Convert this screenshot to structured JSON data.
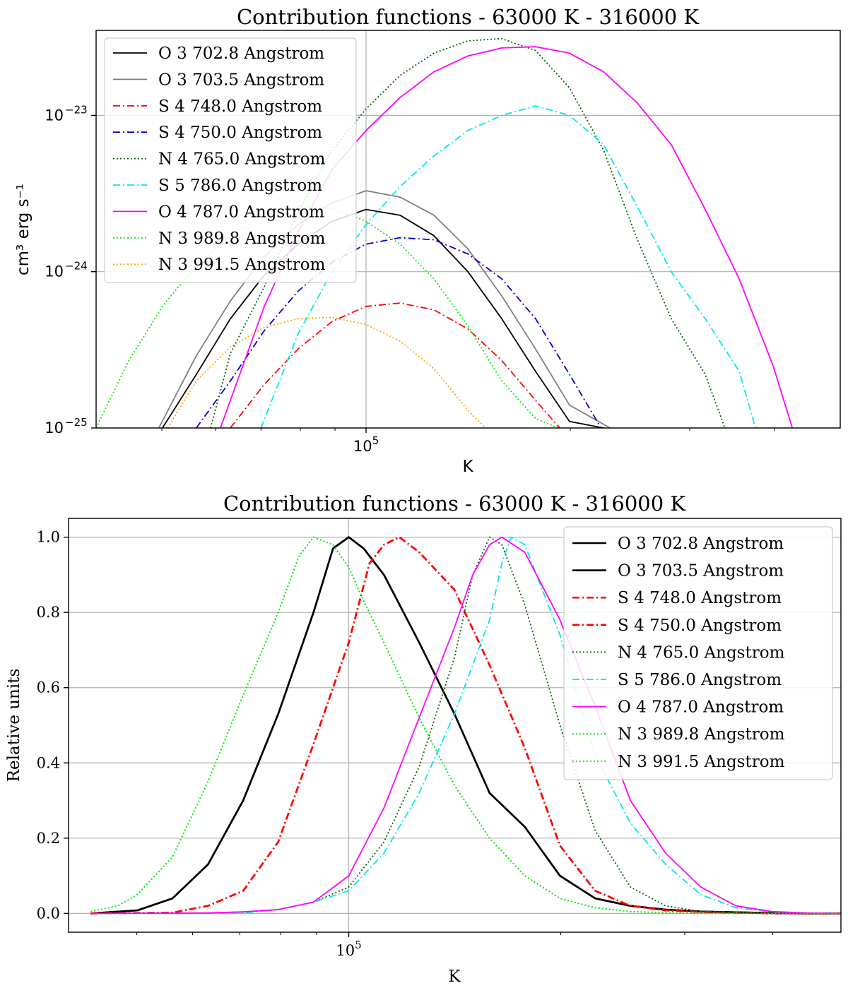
{
  "chart_data": [
    {
      "type": "line",
      "title": "Contribution functions - 63000 K - 316000 K",
      "xlabel": "K",
      "ylabel": "cm³ erg s⁻¹",
      "xscale": "log",
      "yscale": "log",
      "xlim": [
        40000,
        500000
      ],
      "ylim": [
        1e-25,
        3.5e-23
      ],
      "xticks": [
        {
          "value": 100000,
          "label_base": "10",
          "label_exp": "5"
        }
      ],
      "yticks": [
        {
          "value": 1e-25,
          "label_base": "10",
          "label_exp": "−25"
        },
        {
          "value": 1e-24,
          "label_base": "10",
          "label_exp": "−24"
        },
        {
          "value": 1e-23,
          "label_base": "10",
          "label_exp": "−23"
        }
      ],
      "grid": true,
      "legend_position": "upper-left",
      "series": [
        {
          "name": "O 3 702.8 Angstrom",
          "color": "#000000",
          "dash": "solid",
          "x": [
            50100,
            56200,
            63100,
            70800,
            79400,
            89100,
            100000,
            112200,
            125900,
            141300,
            158500,
            177800,
            199500,
            223900
          ],
          "y": [
            1e-25,
            2.2e-25,
            5e-25,
            9.5e-25,
            1.5e-24,
            2.1e-24,
            2.5e-24,
            2.3e-24,
            1.7e-24,
            1e-24,
            5e-25,
            2.3e-25,
            1.1e-25,
            1e-25
          ]
        },
        {
          "name": "O 3 703.5 Angstrom",
          "color": "#7f7f7f",
          "dash": "solid",
          "x": [
            49500,
            56200,
            63100,
            70800,
            79400,
            89100,
            100000,
            112200,
            125900,
            141300,
            158500,
            177800,
            199500,
            229000
          ],
          "y": [
            1e-25,
            2.9e-25,
            6.5e-25,
            1.25e-24,
            2e-24,
            2.75e-24,
            3.3e-24,
            3e-24,
            2.3e-24,
            1.4e-24,
            7e-25,
            3.2e-25,
            1.4e-25,
            1e-25
          ]
        },
        {
          "name": "S 4 748.0 Angstrom",
          "color": "#ff0000",
          "dash": "dashdot",
          "x": [
            63100,
            70800,
            79400,
            89100,
            100000,
            112200,
            125900,
            141300,
            158500,
            177800,
            193000
          ],
          "y": [
            1e-25,
            1.9e-25,
            3.2e-25,
            4.8e-25,
            6e-25,
            6.3e-25,
            5.7e-25,
            4.3e-25,
            2.7e-25,
            1.5e-25,
            1e-25
          ]
        },
        {
          "name": "S 4 750.0 Angstrom",
          "color": "#0000cd",
          "dash": "dashdot",
          "x": [
            56200,
            63100,
            70800,
            79400,
            89100,
            100000,
            112200,
            125900,
            141300,
            158500,
            177800,
            199500,
            222000
          ],
          "y": [
            1e-25,
            2e-25,
            4.2e-25,
            7.5e-25,
            1.15e-24,
            1.5e-24,
            1.65e-24,
            1.6e-24,
            1.3e-24,
            9e-25,
            5e-25,
            2.2e-25,
            1e-25
          ]
        },
        {
          "name": "N 4 765.0 Angstrom",
          "color": "#006400",
          "dash": "dotted",
          "x": [
            59000,
            63100,
            70800,
            79400,
            89100,
            100000,
            112200,
            125900,
            141300,
            158500,
            177800,
            199500,
            223900,
            251200,
            281800,
            316200,
            338000
          ],
          "y": [
            1e-25,
            3e-25,
            8e-25,
            2.4e-24,
            6e-24,
            1.1e-23,
            1.8e-23,
            2.5e-23,
            3e-23,
            3.1e-23,
            2.6e-23,
            1.5e-23,
            6e-24,
            1.6e-24,
            5e-25,
            2.2e-25,
            1e-25
          ]
        },
        {
          "name": "S 5 786.0 Angstrom",
          "color": "#00e5ee",
          "dash": "dashdot",
          "x": [
            70000,
            79400,
            89100,
            100000,
            112200,
            125900,
            141300,
            158500,
            177800,
            199500,
            223900,
            251200,
            281800,
            316200,
            355000,
            375000
          ],
          "y": [
            1e-25,
            4e-25,
            1e-24,
            2e-24,
            3.5e-24,
            5.5e-24,
            8e-24,
            1e-23,
            1.15e-23,
            1e-23,
            6.5e-24,
            2.6e-24,
            1e-24,
            5e-25,
            2.3e-25,
            1e-25
          ]
        },
        {
          "name": "O 4 787.0 Angstrom",
          "color": "#ff00ff",
          "dash": "solid",
          "x": [
            61000,
            70800,
            79400,
            89100,
            100000,
            112200,
            125900,
            141300,
            158500,
            177800,
            199500,
            223900,
            251200,
            281800,
            316200,
            354800,
            398100,
            425000
          ],
          "y": [
            1e-25,
            6e-25,
            1.8e-24,
            4.5e-24,
            8e-24,
            1.3e-23,
            1.9e-23,
            2.4e-23,
            2.7e-23,
            2.75e-23,
            2.5e-23,
            1.9e-23,
            1.2e-23,
            6.5e-24,
            2.5e-24,
            9e-25,
            2.5e-25,
            1e-25
          ]
        },
        {
          "name": "N 3 989.8 Angstrom",
          "color": "#00ee00",
          "dash": "dotted",
          "x": [
            40000,
            44700,
            50100,
            56200,
            63100,
            70800,
            79400,
            89100,
            100000,
            112200,
            125900,
            141300,
            158500,
            177800,
            192000
          ],
          "y": [
            1e-25,
            2.7e-25,
            6e-25,
            1.1e-24,
            1.7e-24,
            2.3e-24,
            2.6e-24,
            2.55e-24,
            2.1e-24,
            1.5e-24,
            9e-25,
            4.5e-25,
            2e-25,
            1.15e-25,
            1e-25
          ]
        },
        {
          "name": "N 3 991.5 Angstrom",
          "color": "#ffa500",
          "dash": "dotted",
          "x": [
            51000,
            56200,
            63100,
            70800,
            79400,
            89100,
            100000,
            112200,
            125900,
            141300,
            150000
          ],
          "y": [
            1e-25,
            2e-25,
            3.3e-25,
            4.4e-25,
            5e-25,
            5.1e-25,
            4.6e-25,
            3.6e-25,
            2.4e-25,
            1.3e-25,
            1e-25
          ]
        }
      ]
    },
    {
      "type": "line",
      "title": "Contribution functions - 63000 K - 316000 K",
      "xlabel": "K",
      "ylabel": "Relative units",
      "xscale": "log",
      "yscale": "linear",
      "xlim": [
        40000,
        500000
      ],
      "ylim": [
        -0.05,
        1.05
      ],
      "xticks": [
        {
          "value": 100000,
          "label_base": "10",
          "label_exp": "5"
        }
      ],
      "yticks": [
        {
          "value": 0.0,
          "label": "0.0"
        },
        {
          "value": 0.2,
          "label": "0.2"
        },
        {
          "value": 0.4,
          "label": "0.4"
        },
        {
          "value": 0.6,
          "label": "0.6"
        },
        {
          "value": 0.8,
          "label": "0.8"
        },
        {
          "value": 1.0,
          "label": "1.0"
        }
      ],
      "grid": true,
      "legend_position": "upper-right",
      "series": [
        {
          "name": "O 3 702.8 Angstrom",
          "color": "#000000",
          "dash": "solid",
          "thick": true,
          "x": [
            43000,
            50100,
            56200,
            63100,
            70800,
            79400,
            89100,
            95000,
            100000,
            105000,
            112200,
            125900,
            141300,
            158500,
            177800,
            199500,
            223900,
            251200,
            281800,
            316200,
            354800,
            398100,
            446700,
            501200
          ],
          "y": [
            0.0,
            0.008,
            0.04,
            0.13,
            0.3,
            0.53,
            0.8,
            0.97,
            1.0,
            0.97,
            0.9,
            0.72,
            0.53,
            0.32,
            0.23,
            0.1,
            0.04,
            0.02,
            0.01,
            0.005,
            0.003,
            0.001,
            0.0,
            0.0
          ]
        },
        {
          "name": "O 3 703.5 Angstrom",
          "color": "#000000",
          "dash": "solid",
          "thick": true,
          "x": [
            43000,
            50100,
            56200,
            63100,
            70800,
            79400,
            89100,
            95000,
            100000,
            105000,
            112200,
            125900,
            141300,
            158500,
            177800,
            199500,
            223900,
            251200,
            281800,
            316200,
            354800,
            398100,
            446700,
            501200
          ],
          "y": [
            0.0,
            0.008,
            0.04,
            0.13,
            0.3,
            0.53,
            0.8,
            0.97,
            1.0,
            0.97,
            0.9,
            0.72,
            0.53,
            0.32,
            0.23,
            0.1,
            0.04,
            0.02,
            0.01,
            0.005,
            0.003,
            0.001,
            0.0,
            0.0
          ]
        },
        {
          "name": "S 4 748.0 Angstrom",
          "color": "#ff0000",
          "dash": "dashdot",
          "thick": true,
          "x": [
            43000,
            56200,
            63100,
            70800,
            79400,
            89100,
            100000,
            107000,
            112200,
            118000,
            125900,
            141300,
            158500,
            177800,
            199500,
            223900,
            251200,
            281800,
            316200,
            354800,
            398100,
            446700,
            501200
          ],
          "y": [
            0.0,
            0.002,
            0.02,
            0.06,
            0.19,
            0.45,
            0.72,
            0.93,
            0.98,
            1.0,
            0.96,
            0.86,
            0.66,
            0.44,
            0.18,
            0.06,
            0.02,
            0.008,
            0.004,
            0.002,
            0.0,
            0.0,
            0.0
          ]
        },
        {
          "name": "S 4 750.0 Angstrom",
          "color": "#ff0000",
          "dash": "dashdot",
          "thick": true,
          "x": [
            43000,
            56200,
            63100,
            70800,
            79400,
            89100,
            100000,
            107000,
            112200,
            118000,
            125900,
            141300,
            158500,
            177800,
            199500,
            223900,
            251200,
            281800,
            316200,
            354800,
            398100,
            446700,
            501200
          ],
          "y": [
            0.0,
            0.002,
            0.02,
            0.06,
            0.19,
            0.45,
            0.72,
            0.93,
            0.98,
            1.0,
            0.96,
            0.86,
            0.66,
            0.44,
            0.18,
            0.06,
            0.02,
            0.008,
            0.004,
            0.002,
            0.0,
            0.0,
            0.0
          ]
        },
        {
          "name": "N 4 765.0 Angstrom",
          "color": "#006400",
          "dash": "dotted",
          "x": [
            43000,
            63100,
            70800,
            79400,
            89100,
            100000,
            112200,
            125900,
            141300,
            150000,
            158500,
            165000,
            177800,
            199500,
            223900,
            251200,
            281800,
            316200,
            354800,
            398100,
            446700,
            501200
          ],
          "y": [
            0.0,
            0.001,
            0.004,
            0.01,
            0.03,
            0.07,
            0.19,
            0.39,
            0.68,
            0.9,
            1.0,
            0.98,
            0.82,
            0.5,
            0.22,
            0.07,
            0.02,
            0.005,
            0.002,
            0.0,
            0.0,
            0.0
          ]
        },
        {
          "name": "S 5 786.0 Angstrom",
          "color": "#00e5ee",
          "dash": "dashdot",
          "x": [
            43000,
            70800,
            79400,
            89100,
            100000,
            112200,
            125900,
            141300,
            158500,
            165000,
            170000,
            177800,
            199500,
            223900,
            251200,
            281800,
            316200,
            354800,
            398100,
            446700,
            501200
          ],
          "y": [
            0.0,
            0.001,
            0.01,
            0.03,
            0.06,
            0.16,
            0.32,
            0.53,
            0.78,
            0.93,
            1.0,
            0.98,
            0.74,
            0.42,
            0.24,
            0.13,
            0.05,
            0.015,
            0.004,
            0.001,
            0.0
          ]
        },
        {
          "name": "O 4 787.0 Angstrom",
          "color": "#ff00ff",
          "dash": "solid",
          "x": [
            43000,
            63100,
            70800,
            79400,
            89100,
            100000,
            112200,
            125900,
            141300,
            150000,
            158500,
            165000,
            177800,
            199500,
            223900,
            251200,
            281800,
            316200,
            354800,
            398100,
            446700,
            501200
          ],
          "y": [
            0.0,
            0.001,
            0.004,
            0.01,
            0.03,
            0.1,
            0.28,
            0.52,
            0.76,
            0.9,
            0.98,
            1.0,
            0.96,
            0.78,
            0.55,
            0.3,
            0.16,
            0.07,
            0.02,
            0.005,
            0.001,
            0.0
          ]
        },
        {
          "name": "N 3 989.8 Angstrom",
          "color": "#00ee00",
          "dash": "dotted",
          "x": [
            43000,
            47000,
            50100,
            56200,
            63100,
            70800,
            79400,
            85000,
            89100,
            95000,
            100000,
            105000,
            112200,
            125900,
            141300,
            158500,
            177800,
            199500,
            223900,
            251200,
            281800,
            316200,
            354800,
            398100,
            446700,
            501200
          ],
          "y": [
            0.005,
            0.02,
            0.05,
            0.15,
            0.35,
            0.58,
            0.8,
            0.95,
            1.0,
            0.98,
            0.92,
            0.83,
            0.72,
            0.52,
            0.34,
            0.2,
            0.1,
            0.04,
            0.015,
            0.005,
            0.002,
            0.0,
            0.0,
            0.0,
            0.0,
            0.0
          ]
        },
        {
          "name": "N 3 991.5 Angstrom",
          "color": "#00ee00",
          "dash": "dotted",
          "x": [
            43000,
            47000,
            50100,
            56200,
            63100,
            70800,
            79400,
            85000,
            89100,
            95000,
            100000,
            105000,
            112200,
            125900,
            141300,
            158500,
            177800,
            199500,
            223900,
            251200,
            281800,
            316200,
            354800,
            398100,
            446700,
            501200
          ],
          "y": [
            0.005,
            0.02,
            0.05,
            0.15,
            0.35,
            0.58,
            0.8,
            0.95,
            1.0,
            0.98,
            0.92,
            0.83,
            0.72,
            0.52,
            0.34,
            0.2,
            0.1,
            0.04,
            0.015,
            0.005,
            0.002,
            0.0,
            0.0,
            0.0,
            0.0,
            0.0
          ]
        }
      ]
    }
  ]
}
